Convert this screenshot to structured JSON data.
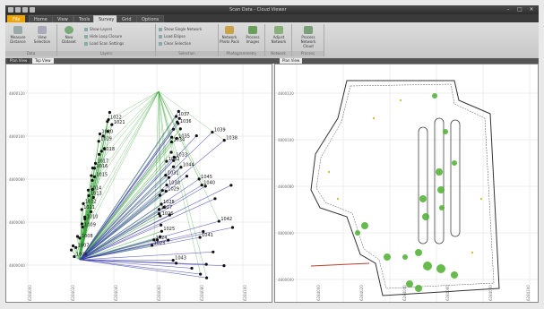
{
  "window": {
    "title": "Scan Data - Cloud Viewer",
    "quick_access": [
      "save",
      "undo",
      "redo",
      "customize"
    ],
    "controls": [
      "–",
      "□",
      "✕"
    ]
  },
  "ribbon_tabs": [
    {
      "label": "File"
    },
    {
      "label": "Home"
    },
    {
      "label": "View"
    },
    {
      "label": "Tools"
    },
    {
      "label": "Survey"
    },
    {
      "label": "Grid"
    },
    {
      "label": "Options"
    }
  ],
  "active_tab": "Survey",
  "ribbon": {
    "groups": [
      {
        "label": "Data"
      },
      {
        "label": "Layers"
      },
      {
        "label": "Selection"
      },
      {
        "label": "Photogrammetry"
      },
      {
        "label": "Network"
      },
      {
        "label": "Process"
      }
    ],
    "buttons": {
      "measure": "Measure Distance",
      "view": "View Selection",
      "new_dataset": "New Dataset",
      "show_layers": "Show Layers",
      "hide_cloud": "Hide Loop Closure",
      "load_settings": "Load Scan Settings",
      "show_single": "Show Single Network",
      "load_ellipse": "Load Ellipse",
      "clear_selection": "Clear Selection",
      "network_photo": "Network Photo Pack",
      "process_images": "Process Images",
      "adjust_network": "Adjust Network",
      "process_network": "Process Network Cloud"
    }
  },
  "document_tabs": [
    {
      "label": "Plan View"
    },
    {
      "label": "Top View"
    },
    {
      "label": "Plan View"
    }
  ],
  "left_view": {
    "y_ticks": [
      "4800120",
      "4800100",
      "4800080",
      "4800060",
      "4800040",
      "4800020"
    ],
    "x_ticks": [
      "6284000",
      "6284020",
      "6284040",
      "6284060",
      "6284080",
      "6284100"
    ],
    "point_labels": [
      "1006",
      "1007",
      "1008",
      "1009",
      "1010",
      "1011",
      "1012",
      "1013",
      "1014",
      "1015",
      "1016",
      "1017",
      "1018",
      "1019",
      "1020",
      "1021",
      "1022",
      "1023",
      "1024",
      "1025",
      "1026",
      "1027",
      "1028",
      "1029",
      "1030",
      "1031",
      "1032",
      "1033",
      "1034",
      "1035",
      "1036",
      "1037",
      "1038",
      "1039",
      "1040",
      "1041",
      "1042",
      "1043",
      "1044",
      "1045"
    ]
  },
  "right_view": {
    "y_ticks": [
      "4800120",
      "4800100",
      "4800080",
      "4800060",
      "4800040"
    ],
    "x_ticks": [
      "6284000",
      "6284020",
      "6284040",
      "6284060",
      "6284080",
      "6284100"
    ]
  },
  "colors": {
    "green_link": "#3aa63a",
    "blue_link": "#3b3bb0",
    "scan_point": "#4caf2f",
    "outline": "#333333",
    "file_tab": "#f0a400"
  }
}
